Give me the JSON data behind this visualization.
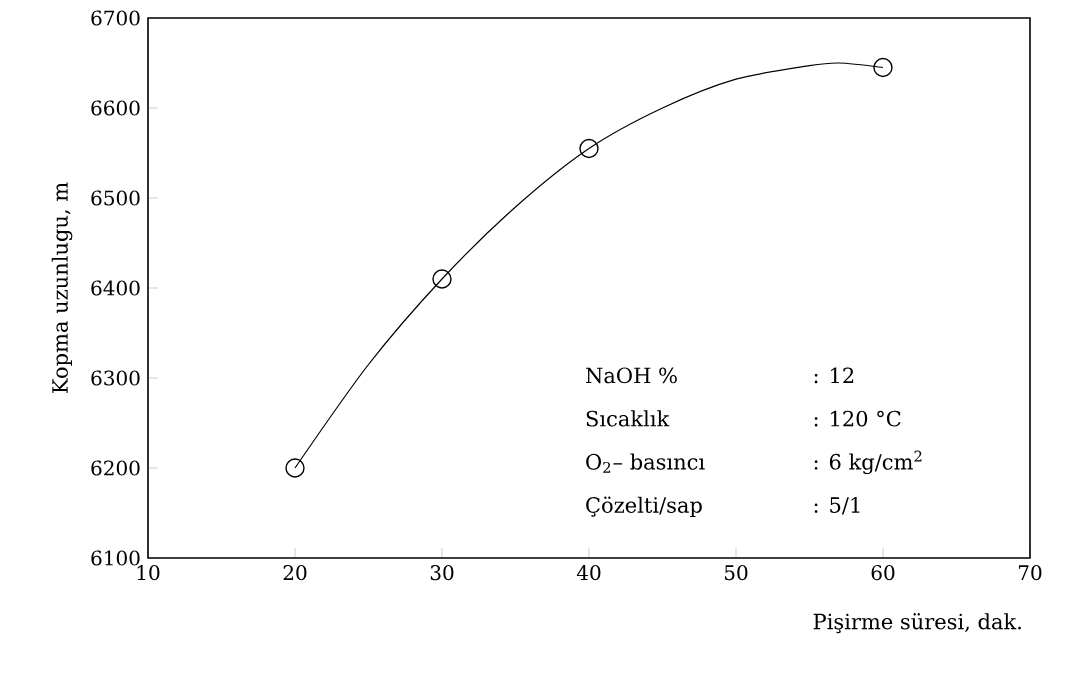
{
  "chart_data": {
    "type": "scatter",
    "xlabel": "Pişirme süresi, dak.",
    "ylabel": "Kopma uzunlugu, m",
    "xlim": [
      10,
      70
    ],
    "xticks": [
      10,
      20,
      30,
      40,
      50,
      60,
      70
    ],
    "ylim": [
      6100,
      6700
    ],
    "yticks": [
      6100,
      6200,
      6300,
      6400,
      6500,
      6600,
      6700
    ],
    "series": [
      {
        "color": "#000000",
        "marker": "circle",
        "x": [
          20,
          30,
          40,
          60
        ],
        "values": [
          6200,
          6410,
          6555,
          6645
        ]
      },
      {
        "type": "line",
        "color": "#000000",
        "marker": "none",
        "x": [
          20,
          25,
          30,
          35,
          40,
          45,
          50,
          55,
          57,
          60
        ],
        "values": [
          6200,
          6315,
          6410,
          6490,
          6555,
          6600,
          6632,
          6647,
          6650,
          6645
        ]
      }
    ],
    "annotations": [
      "NaOH %",
      ": 12",
      "Sıcaklık",
      ": 120 °C",
      "O$_{2}$– basıncı",
      ": 6 kg/cm$^{2}$",
      "Çözelti/sap",
      ": 5/1"
    ]
  }
}
